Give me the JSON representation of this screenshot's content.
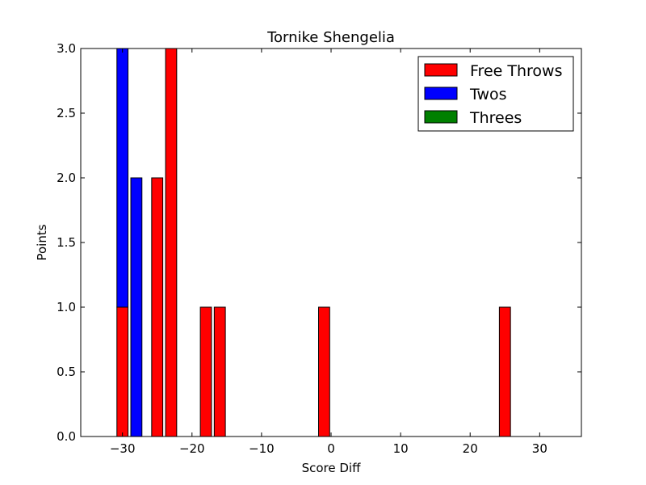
{
  "chart_data": {
    "type": "bar",
    "stacked": true,
    "title": "Tornike Shengelia",
    "xlabel": "Score Diff",
    "ylabel": "Points",
    "xlim": [
      -36,
      36
    ],
    "ylim": [
      0,
      3.0
    ],
    "xticks": [
      -30,
      -20,
      -10,
      0,
      10,
      20,
      30
    ],
    "xtick_labels": [
      "−30",
      "−20",
      "−10",
      "0",
      "10",
      "20",
      "30"
    ],
    "yticks": [
      0.0,
      0.5,
      1.0,
      1.5,
      2.0,
      2.5,
      3.0
    ],
    "ytick_labels": [
      "0.0",
      "0.5",
      "1.0",
      "1.5",
      "2.0",
      "2.5",
      "3.0"
    ],
    "bar_width": 1.6,
    "x": [
      -35,
      -34,
      -33,
      -32,
      -31,
      -30,
      -29,
      -28,
      -27,
      -26,
      -25,
      -24,
      -23,
      -22,
      -21,
      -20,
      -19,
      -18,
      -17,
      -16,
      -15,
      -14,
      -13,
      -12,
      -11,
      -10,
      -9,
      -8,
      -7,
      -6,
      -5,
      -4,
      -3,
      -2,
      -1,
      0,
      1,
      2,
      3,
      4,
      5,
      6,
      7,
      8,
      9,
      10,
      11,
      12,
      13,
      14,
      15,
      16,
      17,
      18,
      19,
      20,
      21,
      22,
      23,
      24,
      25,
      26,
      27,
      28,
      29,
      30,
      31,
      32,
      33,
      34,
      35
    ],
    "series": [
      {
        "name": "Free Throws",
        "color": "#ff0000",
        "values": [
          0,
          0,
          0,
          0,
          0,
          1,
          0,
          0,
          0,
          0,
          2,
          0,
          3,
          0,
          0,
          0,
          0,
          1,
          0,
          1,
          0,
          0,
          0,
          0,
          0,
          0,
          0,
          0,
          0,
          0,
          0,
          0,
          0,
          0,
          1,
          0,
          0,
          0,
          0,
          0,
          0,
          0,
          0,
          0,
          0,
          0,
          0,
          0,
          0,
          0,
          0,
          0,
          0,
          0,
          0,
          0,
          0,
          0,
          0,
          0,
          1,
          0,
          0,
          0,
          0,
          0,
          0,
          0,
          0,
          0,
          0
        ]
      },
      {
        "name": "Twos",
        "color": "#0000ff",
        "values": [
          0,
          0,
          0,
          0,
          0,
          2,
          0,
          2,
          0,
          0,
          0,
          0,
          0,
          0,
          0,
          0,
          0,
          0,
          0,
          0,
          0,
          0,
          0,
          0,
          0,
          0,
          0,
          0,
          0,
          0,
          0,
          0,
          0,
          0,
          0,
          0,
          0,
          0,
          0,
          0,
          0,
          0,
          0,
          0,
          0,
          0,
          0,
          0,
          0,
          0,
          0,
          0,
          0,
          0,
          0,
          0,
          0,
          0,
          0,
          0,
          0,
          0,
          0,
          0,
          0,
          0,
          0,
          0,
          0,
          0,
          0
        ]
      },
      {
        "name": "Threes",
        "color": "#008000",
        "values": [
          0,
          0,
          0,
          0,
          0,
          0,
          0,
          0,
          0,
          0,
          0,
          0,
          0,
          0,
          0,
          0,
          0,
          0,
          0,
          0,
          0,
          0,
          0,
          0,
          0,
          0,
          0,
          0,
          0,
          0,
          0,
          0,
          0,
          0,
          0,
          0,
          0,
          0,
          0,
          0,
          0,
          0,
          0,
          0,
          0,
          0,
          0,
          0,
          0,
          0,
          0,
          0,
          0,
          0,
          0,
          0,
          0,
          0,
          0,
          0,
          0,
          0,
          0,
          0,
          0,
          0,
          0,
          0,
          0,
          0,
          0
        ]
      }
    ],
    "legend": {
      "placement": "top-right"
    },
    "grid": false
  }
}
